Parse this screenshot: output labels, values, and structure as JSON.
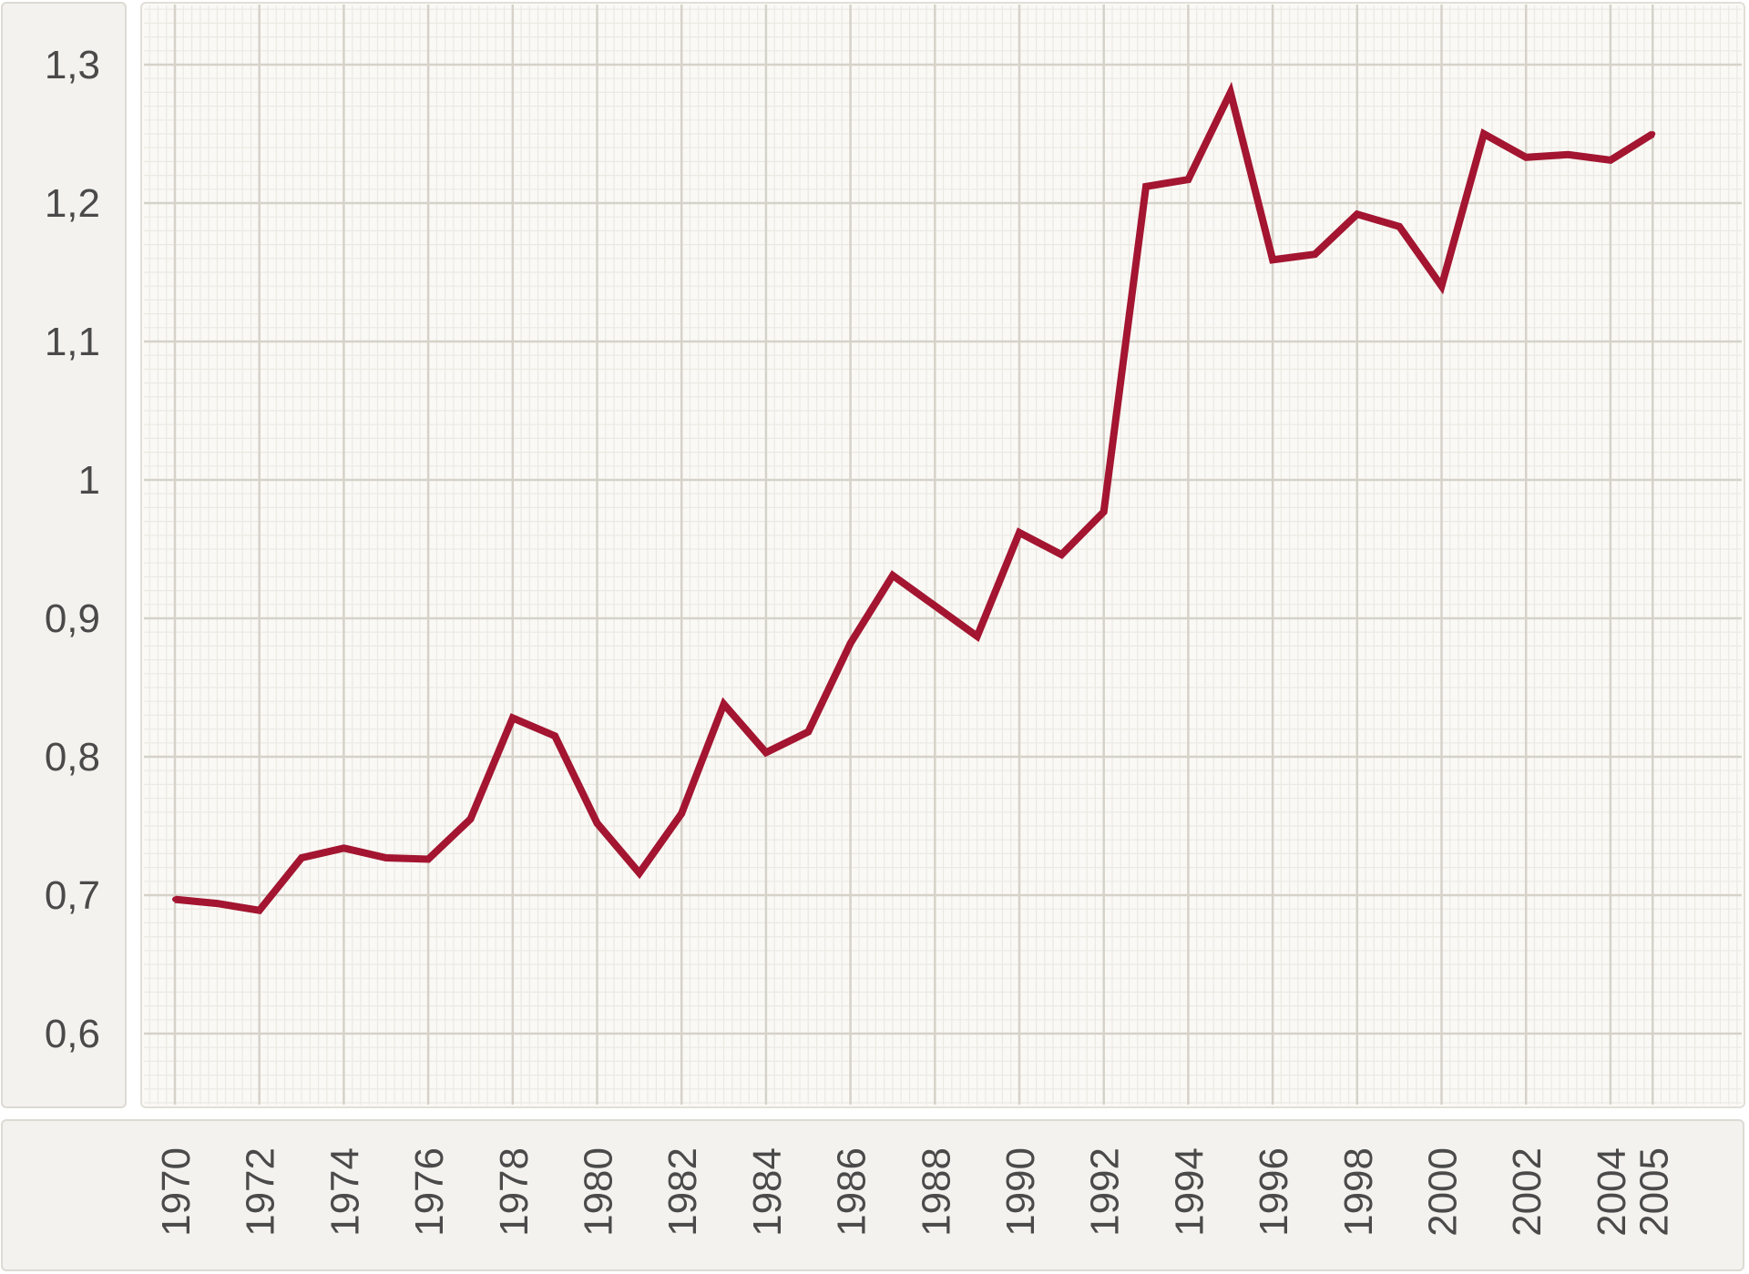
{
  "chart_data": {
    "type": "line",
    "title": "",
    "xlabel": "",
    "ylabel": "",
    "ylim": [
      0.55,
      1.3
    ],
    "yticks": [
      0.6,
      0.7,
      0.8,
      0.9,
      1.0,
      1.1,
      1.2,
      1.3
    ],
    "ytick_labels": [
      "0,6",
      "0,7",
      "0,8",
      "0,9",
      "1",
      "1,1",
      "1,2",
      "1,3"
    ],
    "xticks": [
      1970,
      1972,
      1974,
      1976,
      1978,
      1980,
      1982,
      1984,
      1986,
      1988,
      1990,
      1992,
      1994,
      1996,
      1998,
      2000,
      2002,
      2004,
      2005
    ],
    "xtick_labels": [
      "1970",
      "1972",
      "1974",
      "1976",
      "1978",
      "1980",
      "1982",
      "1984",
      "1986",
      "1988",
      "1990",
      "1992",
      "1994",
      "1996",
      "1998",
      "2000",
      "2002",
      "2004",
      "2005"
    ],
    "grid": true,
    "line_color": "#a31530",
    "series": [
      {
        "name": "",
        "x": [
          1970,
          1971,
          1972,
          1973,
          1974,
          1975,
          1976,
          1977,
          1978,
          1979,
          1980,
          1981,
          1982,
          1983,
          1984,
          1985,
          1986,
          1987,
          1988,
          1989,
          1990,
          1991,
          1992,
          1993,
          1994,
          1995,
          1996,
          1997,
          1998,
          1999,
          2000,
          2001,
          2002,
          2003,
          2004,
          2005
        ],
        "values": [
          0.697,
          0.694,
          0.689,
          0.727,
          0.734,
          0.727,
          0.726,
          0.755,
          0.828,
          0.815,
          0.752,
          0.716,
          0.759,
          0.838,
          0.803,
          0.818,
          0.882,
          0.931,
          0.909,
          0.887,
          0.962,
          0.946,
          0.977,
          1.212,
          1.217,
          1.28,
          1.159,
          1.163,
          1.192,
          1.183,
          1.14,
          1.25,
          1.233,
          1.235,
          1.231,
          1.25
        ]
      }
    ]
  }
}
